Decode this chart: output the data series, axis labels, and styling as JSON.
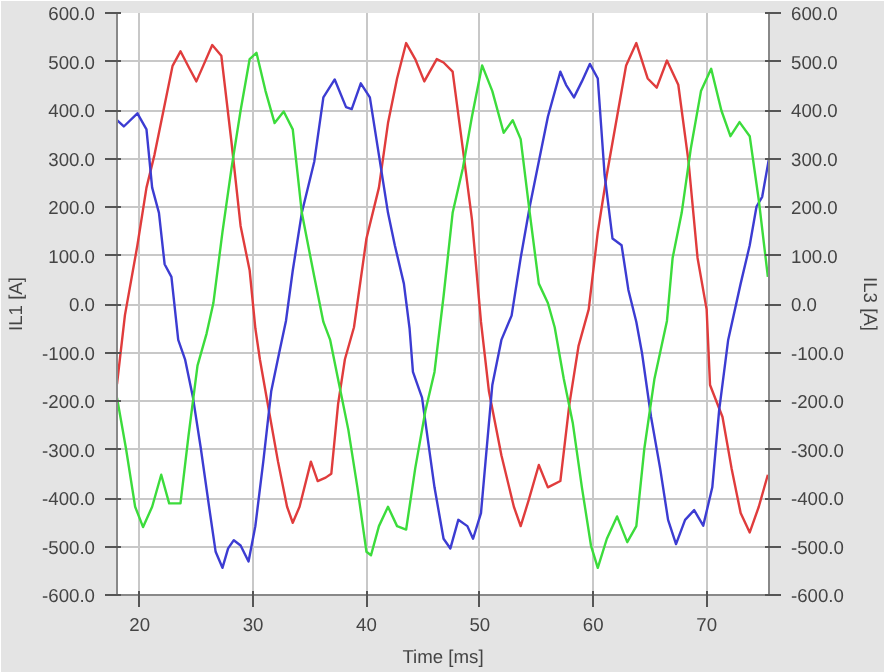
{
  "chart_data": {
    "type": "line",
    "xlabel": "Time [ms]",
    "ylabel": "IL1 [A]",
    "y2label": "IL3 [A]",
    "xlim": [
      18,
      75.5
    ],
    "xticks": [
      20,
      30,
      40,
      50,
      60,
      70
    ],
    "ylim": [
      -600,
      600
    ],
    "yticks": [
      {
        "value": -600,
        "label": "-600.0"
      },
      {
        "value": -500,
        "label": "-500.0"
      },
      {
        "value": -400,
        "label": "-400.0"
      },
      {
        "value": -300,
        "label": "-300.0"
      },
      {
        "value": -200,
        "label": "-200.0"
      },
      {
        "value": -100,
        "label": "-100.0"
      },
      {
        "value": 0,
        "label": "0.0"
      },
      {
        "value": 100,
        "label": "100.0"
      },
      {
        "value": 200,
        "label": "200.0"
      },
      {
        "value": 300,
        "label": "300.0"
      },
      {
        "value": 400,
        "label": "400.0"
      },
      {
        "value": 500,
        "label": "500.0"
      },
      {
        "value": 600,
        "label": "600.0"
      }
    ],
    "y2lim": [
      -600,
      600
    ],
    "y2ticks": [
      {
        "value": -600,
        "label": "-600.0"
      },
      {
        "value": -500,
        "label": "-500.0"
      },
      {
        "value": -400,
        "label": "-400.0"
      },
      {
        "value": -300,
        "label": "-300.0"
      },
      {
        "value": -200,
        "label": "-200.0"
      },
      {
        "value": -100,
        "label": "-100.0"
      },
      {
        "value": 0,
        "label": "0.0"
      },
      {
        "value": 100,
        "label": "100.0"
      },
      {
        "value": 200,
        "label": "200.0"
      },
      {
        "value": 300,
        "label": "300.0"
      },
      {
        "value": 400,
        "label": "400.0"
      },
      {
        "value": 500,
        "label": "500.0"
      },
      {
        "value": 600,
        "label": "600.0"
      }
    ],
    "grid": true,
    "marker": "none",
    "line_style": "solid",
    "series": [
      {
        "color": "#e03c3c",
        "x": [
          18,
          18.7,
          19.8,
          20.6,
          21.3,
          22.1,
          22.9,
          23.6,
          24.4,
          25,
          25.6,
          26.4,
          27.2,
          28.1,
          28.9,
          29.7,
          30.2,
          30.6,
          31.4,
          32.2,
          33,
          33.5,
          34.1,
          35.1,
          35.7,
          36.4,
          36.9,
          37.5,
          38.1,
          38.9,
          40,
          41.1,
          41.9,
          42.7,
          43.5,
          44.3,
          45.1,
          46.2,
          46.8,
          47.6,
          48.5,
          49.3,
          50.1,
          50.8,
          51.9,
          53,
          53.6,
          54.3,
          55.2,
          56,
          57.1,
          57.9,
          58.7,
          59.6,
          60.4,
          61.2,
          62.1,
          62.9,
          63.8,
          64.8,
          65.6,
          66.5,
          67.5,
          68.4,
          69.2,
          70,
          70.3,
          71.4,
          72.2,
          73,
          73.8,
          74.6,
          75.4
        ],
        "values": [
          -165,
          -23,
          121,
          240,
          307,
          399,
          491,
          521,
          485,
          459,
          491,
          534,
          512,
          333,
          161,
          69,
          -50,
          -114,
          -220,
          -325,
          -418,
          -451,
          -418,
          -325,
          -365,
          -358,
          -350,
          -206,
          -114,
          -48,
          135,
          240,
          373,
          465,
          538,
          505,
          459,
          505,
          498,
          479,
          320,
          175,
          -37,
          -180,
          -312,
          -418,
          -458,
          -405,
          -332,
          -378,
          -365,
          -206,
          -87,
          -11,
          148,
          267,
          386,
          492,
          538,
          465,
          446,
          502,
          452,
          294,
          95,
          -11,
          -167,
          -233,
          -339,
          -431,
          -471,
          -418,
          -352
        ]
      },
      {
        "color": "#3c3cd2",
        "x": [
          18,
          18.6,
          19.8,
          20.6,
          21.1,
          21.7,
          22.2,
          22.8,
          23.4,
          24,
          24.7,
          25.4,
          26.2,
          26.7,
          27.3,
          27.8,
          28.3,
          28.9,
          29.6,
          30.2,
          30.9,
          31.6,
          32.3,
          32.9,
          33.5,
          34.3,
          35.4,
          36.2,
          37.2,
          38.2,
          38.7,
          39.5,
          40.3,
          41.1,
          41.9,
          42.5,
          43.3,
          43.8,
          44.1,
          44.9,
          46,
          46.8,
          47.4,
          48.1,
          48.9,
          49.4,
          50.1,
          50.5,
          51.1,
          51.9,
          52.8,
          53.6,
          54.4,
          55.2,
          56,
          57.1,
          57.6,
          58.3,
          59,
          59.7,
          60.4,
          61,
          61.7,
          62.5,
          63.1,
          63.8,
          64.3,
          65.1,
          65.9,
          66.6,
          67.3,
          68.1,
          68.9,
          69.7,
          70.5,
          71.1,
          71.9,
          73,
          73.8,
          74.4,
          74.9,
          75.5
        ],
        "values": [
          379,
          366,
          393,
          360,
          240,
          188,
          82,
          56,
          -74,
          -114,
          -193,
          -299,
          -431,
          -511,
          -544,
          -504,
          -487,
          -498,
          -531,
          -458,
          -325,
          -180,
          -101,
          -35,
          69,
          188,
          294,
          426,
          463,
          406,
          402,
          455,
          426,
          307,
          188,
          121,
          42,
          -50,
          -140,
          -193,
          -378,
          -484,
          -504,
          -445,
          -458,
          -484,
          -431,
          -325,
          -167,
          -74,
          -24,
          95,
          201,
          294,
          386,
          479,
          452,
          426,
          459,
          495,
          465,
          267,
          135,
          121,
          29,
          -37,
          -101,
          -233,
          -339,
          -445,
          -495,
          -445,
          -425,
          -457,
          -378,
          -220,
          -74,
          42,
          121,
          201,
          221,
          300
        ]
      },
      {
        "color": "#3cdc3c",
        "x": [
          18,
          18.8,
          19.6,
          20.3,
          21.1,
          21.9,
          22.6,
          23.6,
          24.3,
          25.1,
          25.9,
          26.5,
          27.3,
          28.1,
          28.9,
          29.7,
          30.3,
          31.1,
          31.9,
          32.7,
          33.5,
          34.3,
          35.4,
          36.2,
          36.8,
          37.6,
          38.4,
          39.2,
          40,
          40.4,
          41.1,
          41.9,
          42.7,
          43.5,
          44.3,
          45.2,
          46,
          46.8,
          47.6,
          48.5,
          49.3,
          50.2,
          51.1,
          52.1,
          52.9,
          53.6,
          54.4,
          55.2,
          56,
          56.6,
          57.4,
          58.2,
          59,
          59.8,
          60.4,
          61.2,
          62.1,
          63,
          63.8,
          64.5,
          65.4,
          66.5,
          67,
          67.8,
          68.6,
          69.5,
          70.4,
          71.3,
          72.1,
          72.9,
          73.8,
          74.6,
          75.4
        ],
        "values": [
          -193,
          -299,
          -418,
          -460,
          -418,
          -352,
          -411,
          -411,
          -273,
          -127,
          -61,
          2,
          148,
          280,
          399,
          505,
          518,
          439,
          373,
          397,
          360,
          188,
          56,
          -37,
          -74,
          -167,
          -259,
          -378,
          -511,
          -518,
          -458,
          -418,
          -458,
          -465,
          -339,
          -220,
          -140,
          16,
          188,
          280,
          386,
          492,
          439,
          353,
          379,
          340,
          188,
          42,
          2,
          -48,
          -154,
          -246,
          -378,
          -498,
          -544,
          -484,
          -438,
          -491,
          -458,
          -299,
          -154,
          -35,
          95,
          188,
          320,
          439,
          485,
          399,
          346,
          375,
          346,
          214,
          56
        ]
      }
    ]
  }
}
